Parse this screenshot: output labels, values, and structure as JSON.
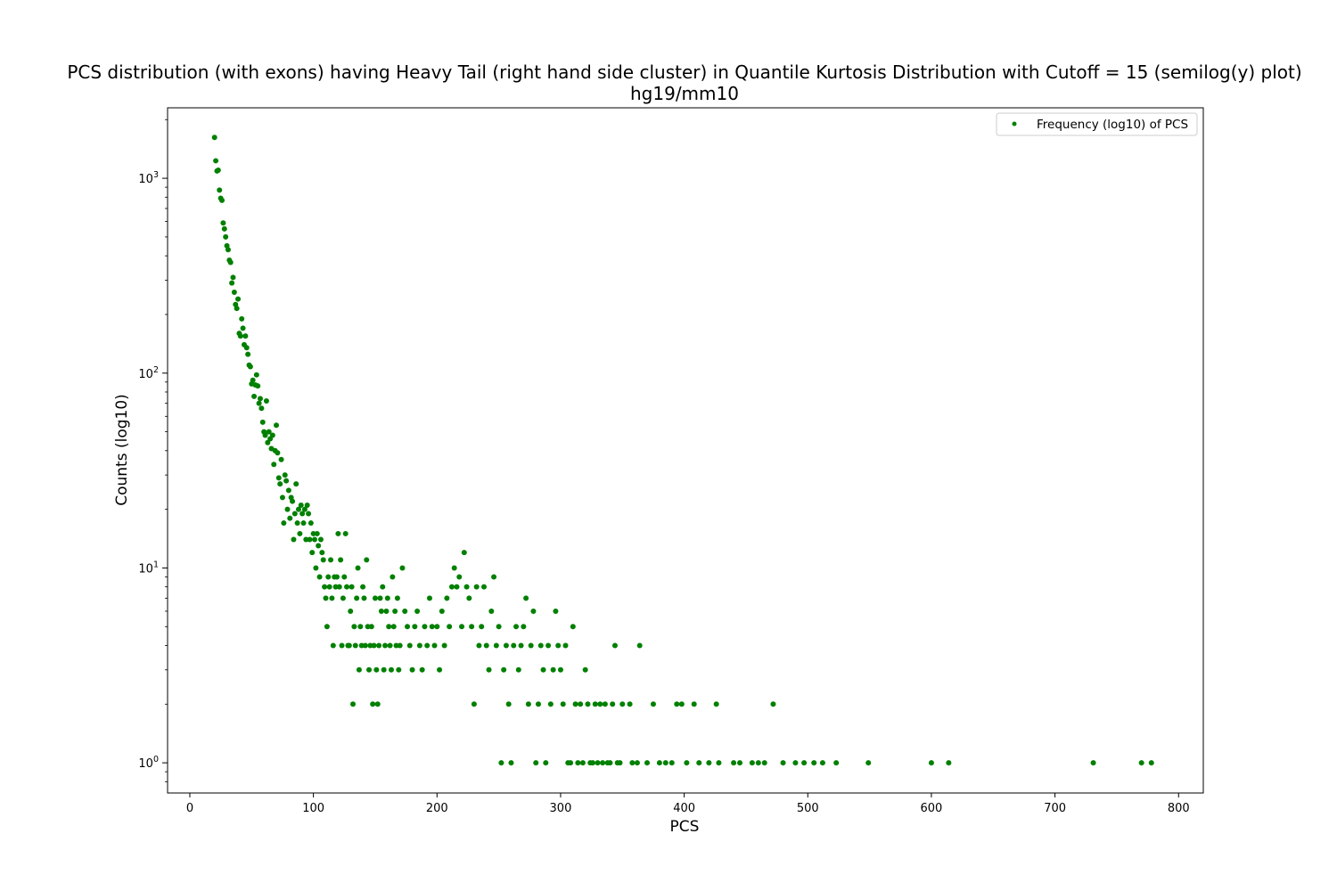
{
  "colors": {
    "marker": "#008000",
    "axes": "#000000",
    "legend_border": "#cccccc"
  },
  "chart_data": {
    "type": "scatter",
    "title": "PCS distribution (with exons) having Heavy Tail (right hand side cluster) in Quantile Kurtosis Distribution with Cutoff = 15 (semilog(y) plot)",
    "subtitle": "hg19/mm10",
    "xlabel": "PCS",
    "ylabel": "Counts (log10)",
    "yscale": "log",
    "xlim": [
      -18,
      820
    ],
    "ylim": [
      0.7,
      2300
    ],
    "xticks": [
      0,
      100,
      200,
      300,
      400,
      500,
      600,
      700,
      800
    ],
    "xtick_labels": [
      "0",
      "100",
      "200",
      "300",
      "400",
      "500",
      "600",
      "700",
      "800"
    ],
    "yticks": [
      1,
      10,
      100,
      1000
    ],
    "ytick_labels": [
      "10^0",
      "10^1",
      "10^2",
      "10^3"
    ],
    "grid": false,
    "legend_position": "top-right",
    "series": [
      {
        "name": "Frequency (log10) of PCS",
        "points": [
          [
            20,
            1620
          ],
          [
            21,
            1230
          ],
          [
            22,
            1090
          ],
          [
            23,
            1100
          ],
          [
            24,
            870
          ],
          [
            25,
            790
          ],
          [
            26,
            770
          ],
          [
            27,
            590
          ],
          [
            28,
            550
          ],
          [
            29,
            500
          ],
          [
            30,
            450
          ],
          [
            31,
            430
          ],
          [
            32,
            380
          ],
          [
            33,
            370
          ],
          [
            34,
            290
          ],
          [
            35,
            310
          ],
          [
            36,
            260
          ],
          [
            37,
            225
          ],
          [
            38,
            215
          ],
          [
            39,
            240
          ],
          [
            40,
            160
          ],
          [
            41,
            155
          ],
          [
            42,
            190
          ],
          [
            43,
            170
          ],
          [
            44,
            140
          ],
          [
            45,
            155
          ],
          [
            46,
            135
          ],
          [
            47,
            125
          ],
          [
            48,
            110
          ],
          [
            49,
            108
          ],
          [
            50,
            88
          ],
          [
            51,
            92
          ],
          [
            52,
            76
          ],
          [
            53,
            87
          ],
          [
            54,
            98
          ],
          [
            55,
            86
          ],
          [
            56,
            70
          ],
          [
            57,
            74
          ],
          [
            58,
            66
          ],
          [
            59,
            56
          ],
          [
            60,
            50
          ],
          [
            61,
            48
          ],
          [
            62,
            72
          ],
          [
            63,
            44
          ],
          [
            64,
            50
          ],
          [
            65,
            46
          ],
          [
            66,
            41
          ],
          [
            67,
            48
          ],
          [
            68,
            34
          ],
          [
            69,
            40
          ],
          [
            70,
            54
          ],
          [
            71,
            39
          ],
          [
            72,
            29
          ],
          [
            73,
            27
          ],
          [
            74,
            36
          ],
          [
            75,
            23
          ],
          [
            76,
            17
          ],
          [
            77,
            30
          ],
          [
            78,
            28
          ],
          [
            79,
            20
          ],
          [
            80,
            25
          ],
          [
            81,
            18
          ],
          [
            82,
            23
          ],
          [
            83,
            22
          ],
          [
            84,
            14
          ],
          [
            85,
            19
          ],
          [
            86,
            27
          ],
          [
            87,
            17
          ],
          [
            88,
            20
          ],
          [
            89,
            15
          ],
          [
            90,
            21
          ],
          [
            91,
            19
          ],
          [
            92,
            17
          ],
          [
            93,
            20
          ],
          [
            94,
            14
          ],
          [
            95,
            21
          ],
          [
            96,
            19
          ],
          [
            97,
            14
          ],
          [
            98,
            17
          ],
          [
            99,
            12
          ],
          [
            100,
            15
          ],
          [
            101,
            14
          ],
          [
            102,
            10
          ],
          [
            103,
            15
          ],
          [
            104,
            13
          ],
          [
            105,
            9
          ],
          [
            106,
            14
          ],
          [
            107,
            12
          ],
          [
            108,
            11
          ],
          [
            109,
            8
          ],
          [
            110,
            7
          ],
          [
            111,
            5
          ],
          [
            112,
            9
          ],
          [
            113,
            8
          ],
          [
            114,
            11
          ],
          [
            115,
            7
          ],
          [
            116,
            4
          ],
          [
            117,
            9
          ],
          [
            118,
            8
          ],
          [
            119,
            9
          ],
          [
            120,
            15
          ],
          [
            121,
            8
          ],
          [
            122,
            11
          ],
          [
            123,
            4
          ],
          [
            124,
            7
          ],
          [
            125,
            9
          ],
          [
            126,
            15
          ],
          [
            127,
            8
          ],
          [
            128,
            4
          ],
          [
            129,
            4
          ],
          [
            130,
            6
          ],
          [
            131,
            8
          ],
          [
            132,
            2
          ],
          [
            133,
            5
          ],
          [
            134,
            4
          ],
          [
            135,
            7
          ],
          [
            136,
            10
          ],
          [
            137,
            3
          ],
          [
            138,
            5
          ],
          [
            139,
            4
          ],
          [
            140,
            8
          ],
          [
            141,
            7
          ],
          [
            142,
            4
          ],
          [
            143,
            11
          ],
          [
            144,
            5
          ],
          [
            145,
            3
          ],
          [
            146,
            4
          ],
          [
            147,
            5
          ],
          [
            148,
            2
          ],
          [
            149,
            4
          ],
          [
            150,
            7
          ],
          [
            151,
            3
          ],
          [
            152,
            2
          ],
          [
            153,
            4
          ],
          [
            154,
            7
          ],
          [
            155,
            6
          ],
          [
            156,
            8
          ],
          [
            157,
            3
          ],
          [
            158,
            4
          ],
          [
            159,
            6
          ],
          [
            160,
            7
          ],
          [
            161,
            5
          ],
          [
            162,
            4
          ],
          [
            163,
            3
          ],
          [
            164,
            9
          ],
          [
            165,
            5
          ],
          [
            166,
            6
          ],
          [
            167,
            4
          ],
          [
            168,
            7
          ],
          [
            169,
            3
          ],
          [
            170,
            4
          ],
          [
            172,
            10
          ],
          [
            174,
            6
          ],
          [
            176,
            5
          ],
          [
            178,
            4
          ],
          [
            180,
            3
          ],
          [
            182,
            5
          ],
          [
            184,
            6
          ],
          [
            186,
            4
          ],
          [
            188,
            3
          ],
          [
            190,
            5
          ],
          [
            192,
            4
          ],
          [
            194,
            7
          ],
          [
            196,
            5
          ],
          [
            198,
            4
          ],
          [
            200,
            5
          ],
          [
            202,
            3
          ],
          [
            204,
            6
          ],
          [
            206,
            4
          ],
          [
            208,
            7
          ],
          [
            210,
            5
          ],
          [
            212,
            8
          ],
          [
            214,
            10
          ],
          [
            216,
            8
          ],
          [
            218,
            9
          ],
          [
            220,
            5
          ],
          [
            222,
            12
          ],
          [
            224,
            8
          ],
          [
            226,
            7
          ],
          [
            228,
            5
          ],
          [
            230,
            2
          ],
          [
            232,
            8
          ],
          [
            234,
            4
          ],
          [
            236,
            5
          ],
          [
            238,
            8
          ],
          [
            240,
            4
          ],
          [
            242,
            3
          ],
          [
            244,
            6
          ],
          [
            246,
            9
          ],
          [
            248,
            4
          ],
          [
            250,
            5
          ],
          [
            252,
            1
          ],
          [
            254,
            3
          ],
          [
            256,
            4
          ],
          [
            258,
            2
          ],
          [
            260,
            1
          ],
          [
            262,
            4
          ],
          [
            264,
            5
          ],
          [
            266,
            3
          ],
          [
            268,
            4
          ],
          [
            270,
            5
          ],
          [
            272,
            7
          ],
          [
            274,
            2
          ],
          [
            276,
            4
          ],
          [
            278,
            6
          ],
          [
            280,
            1
          ],
          [
            282,
            2
          ],
          [
            284,
            4
          ],
          [
            286,
            3
          ],
          [
            288,
            1
          ],
          [
            290,
            4
          ],
          [
            292,
            2
          ],
          [
            294,
            3
          ],
          [
            296,
            6
          ],
          [
            298,
            4
          ],
          [
            300,
            3
          ],
          [
            302,
            2
          ],
          [
            304,
            4
          ],
          [
            306,
            1
          ],
          [
            308,
            1
          ],
          [
            310,
            5
          ],
          [
            312,
            2
          ],
          [
            314,
            1
          ],
          [
            316,
            2
          ],
          [
            318,
            1
          ],
          [
            320,
            3
          ],
          [
            322,
            2
          ],
          [
            324,
            1
          ],
          [
            326,
            1
          ],
          [
            328,
            2
          ],
          [
            330,
            1
          ],
          [
            332,
            2
          ],
          [
            334,
            1
          ],
          [
            336,
            2
          ],
          [
            338,
            1
          ],
          [
            340,
            1
          ],
          [
            342,
            2
          ],
          [
            344,
            4
          ],
          [
            346,
            1
          ],
          [
            348,
            1
          ],
          [
            350,
            2
          ],
          [
            356,
            2
          ],
          [
            358,
            1
          ],
          [
            362,
            1
          ],
          [
            364,
            4
          ],
          [
            370,
            1
          ],
          [
            375,
            2
          ],
          [
            380,
            1
          ],
          [
            385,
            1
          ],
          [
            390,
            1
          ],
          [
            394,
            2
          ],
          [
            398,
            2
          ],
          [
            402,
            1
          ],
          [
            408,
            2
          ],
          [
            412,
            1
          ],
          [
            420,
            1
          ],
          [
            426,
            2
          ],
          [
            428,
            1
          ],
          [
            440,
            1
          ],
          [
            445,
            1
          ],
          [
            455,
            1
          ],
          [
            460,
            1
          ],
          [
            465,
            1
          ],
          [
            472,
            2
          ],
          [
            480,
            1
          ],
          [
            490,
            1
          ],
          [
            497,
            1
          ],
          [
            505,
            1
          ],
          [
            512,
            1
          ],
          [
            523,
            1
          ],
          [
            549,
            1
          ],
          [
            600,
            1
          ],
          [
            614,
            1
          ],
          [
            731,
            1
          ],
          [
            770,
            1
          ],
          [
            778,
            1
          ]
        ]
      }
    ]
  }
}
